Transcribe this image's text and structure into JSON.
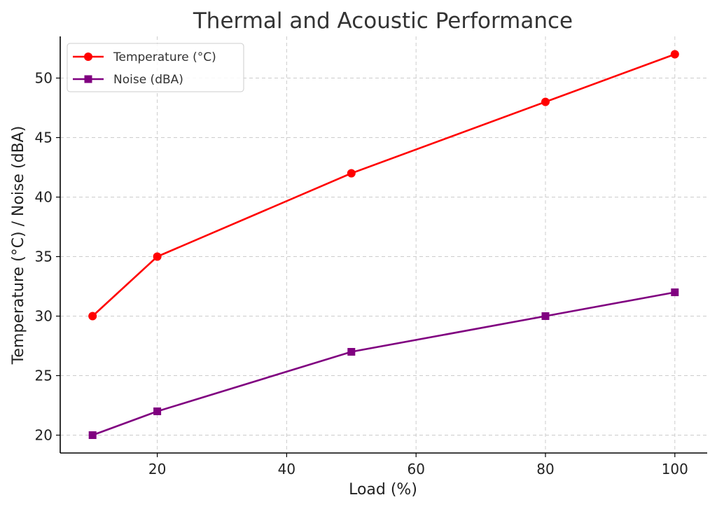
{
  "chart_data": {
    "type": "line",
    "title": "Thermal and Acoustic Performance",
    "xlabel": "Load (%)",
    "ylabel": "Temperature (°C) / Noise (dBA)",
    "x": [
      10,
      20,
      50,
      80,
      100
    ],
    "xlim": [
      5,
      105
    ],
    "ylim": [
      18.5,
      53.5
    ],
    "xticks": [
      20,
      40,
      60,
      80,
      100
    ],
    "yticks": [
      20,
      25,
      30,
      35,
      40,
      45,
      50
    ],
    "grid": true,
    "legend_position": "top-left",
    "series": [
      {
        "name": "Temperature (°C)",
        "values": [
          30,
          35,
          42,
          48,
          52
        ],
        "color": "#ff0000",
        "marker": "circle"
      },
      {
        "name": "Noise (dBA)",
        "values": [
          20,
          22,
          27,
          30,
          32
        ],
        "color": "#800080",
        "marker": "square"
      }
    ]
  }
}
